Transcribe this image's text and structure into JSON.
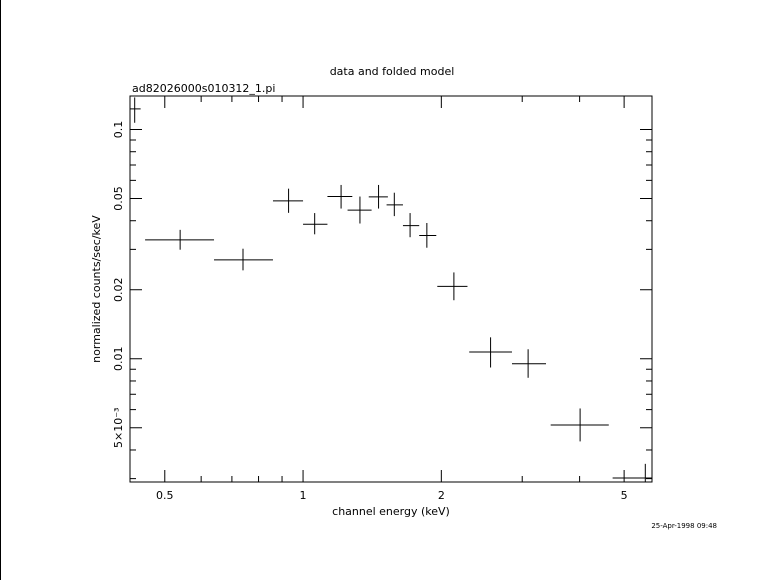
{
  "chart_data": {
    "type": "scatter",
    "title": "data and folded model",
    "subtitle": "ad82026000s010312_1.pi",
    "xlabel": "channel energy (keV)",
    "ylabel": "normalized counts/sec/keV",
    "xscale": "log",
    "yscale": "log",
    "xlim": [
      0.42,
      5.75
    ],
    "ylim": [
      0.0029,
      0.14
    ],
    "x_ticks": [
      {
        "value": 0.5,
        "label": "0.5"
      },
      {
        "value": 1,
        "label": "1"
      },
      {
        "value": 2,
        "label": "2"
      },
      {
        "value": 5,
        "label": "5"
      }
    ],
    "y_ticks": [
      {
        "value": 0.1,
        "label": "0.1"
      },
      {
        "value": 0.05,
        "label": "0.05"
      },
      {
        "value": 0.02,
        "label": "0.02"
      },
      {
        "value": 0.01,
        "label": "0.01"
      },
      {
        "value": 0.005,
        "label": "5×10⁻³"
      }
    ],
    "series": [
      {
        "points": [
          {
            "x": 0.43,
            "xlo": 0.419,
            "xhi": 0.443,
            "y": 0.123,
            "ylo": 0.107,
            "yhi": 0.138
          },
          {
            "x": 0.54,
            "xlo": 0.453,
            "xhi": 0.64,
            "y": 0.033,
            "ylo": 0.0299,
            "yhi": 0.0365
          },
          {
            "x": 0.74,
            "xlo": 0.64,
            "xhi": 0.86,
            "y": 0.027,
            "ylo": 0.0243,
            "yhi": 0.0302
          },
          {
            "x": 0.93,
            "xlo": 0.86,
            "xhi": 1.0,
            "y": 0.0488,
            "ylo": 0.0433,
            "yhi": 0.0552
          },
          {
            "x": 1.06,
            "xlo": 1.0,
            "xhi": 1.13,
            "y": 0.0386,
            "ylo": 0.0349,
            "yhi": 0.0432
          },
          {
            "x": 1.21,
            "xlo": 1.13,
            "xhi": 1.28,
            "y": 0.051,
            "ylo": 0.0452,
            "yhi": 0.0573
          },
          {
            "x": 1.33,
            "xlo": 1.25,
            "xhi": 1.41,
            "y": 0.0445,
            "ylo": 0.0389,
            "yhi": 0.051
          },
          {
            "x": 1.46,
            "xlo": 1.39,
            "xhi": 1.53,
            "y": 0.0508,
            "ylo": 0.0452,
            "yhi": 0.0573
          },
          {
            "x": 1.58,
            "xlo": 1.52,
            "xhi": 1.65,
            "y": 0.0469,
            "ylo": 0.0419,
            "yhi": 0.053
          },
          {
            "x": 1.71,
            "xlo": 1.65,
            "xhi": 1.79,
            "y": 0.0381,
            "ylo": 0.0339,
            "yhi": 0.0432
          },
          {
            "x": 1.86,
            "xlo": 1.79,
            "xhi": 1.95,
            "y": 0.0345,
            "ylo": 0.0305,
            "yhi": 0.0391
          },
          {
            "x": 2.13,
            "xlo": 1.96,
            "xhi": 2.28,
            "y": 0.0207,
            "ylo": 0.018,
            "yhi": 0.0238
          },
          {
            "x": 2.56,
            "xlo": 2.3,
            "xhi": 2.85,
            "y": 0.0107,
            "ylo": 0.00916,
            "yhi": 0.0124
          },
          {
            "x": 3.09,
            "xlo": 2.85,
            "xhi": 3.38,
            "y": 0.00951,
            "ylo": 0.00826,
            "yhi": 0.011
          },
          {
            "x": 4.01,
            "xlo": 3.46,
            "xhi": 4.63,
            "y": 0.00514,
            "ylo": 0.00436,
            "yhi": 0.00607
          },
          {
            "x": 5.56,
            "xlo": 4.72,
            "xhi": 5.75,
            "y": 0.00302,
            "ylo": 0.00262,
            "yhi": 0.00348
          }
        ]
      }
    ],
    "grid": false,
    "timestamp": "25-Apr-1998 09:48"
  }
}
